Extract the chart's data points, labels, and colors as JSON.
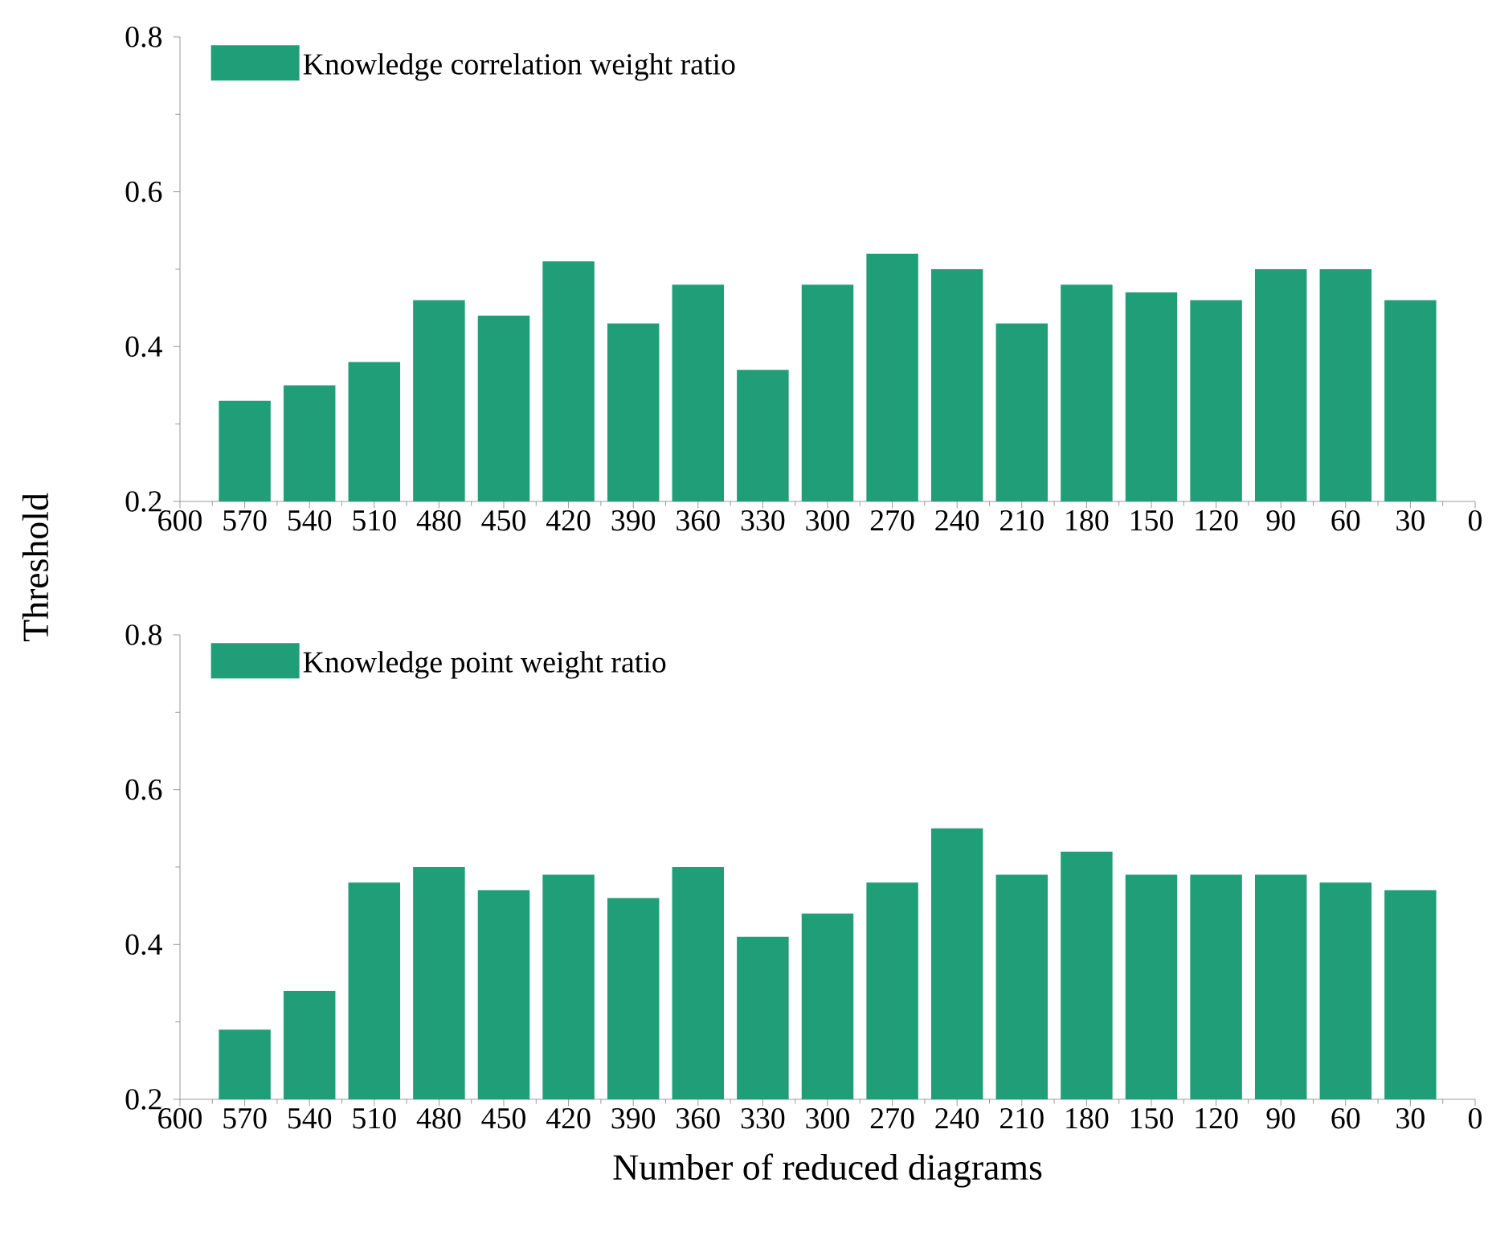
{
  "chart_data": [
    {
      "type": "bar",
      "ylabel": "Threshold",
      "x": [
        570,
        540,
        510,
        480,
        450,
        420,
        390,
        360,
        330,
        300,
        270,
        240,
        210,
        180,
        150,
        120,
        90,
        60,
        30
      ],
      "series": [
        {
          "name": "Knowledge correlation weight ratio",
          "color": "#1f9e78",
          "values": [
            0.33,
            0.35,
            0.38,
            0.46,
            0.44,
            0.51,
            0.43,
            0.48,
            0.37,
            0.48,
            0.52,
            0.5,
            0.43,
            0.48,
            0.47,
            0.46,
            0.5,
            0.5,
            0.46
          ]
        }
      ],
      "xlim": [
        600,
        0
      ],
      "xticks": [
        600,
        570,
        540,
        510,
        480,
        450,
        420,
        390,
        360,
        330,
        300,
        270,
        240,
        210,
        180,
        150,
        120,
        90,
        60,
        30,
        0
      ],
      "ylim": [
        0.2,
        0.8
      ],
      "yticks": [
        0.2,
        0.4,
        0.6,
        0.8
      ],
      "legend": "top left"
    },
    {
      "type": "bar",
      "xlabel": "Number of reduced diagrams",
      "x": [
        570,
        540,
        510,
        480,
        450,
        420,
        390,
        360,
        330,
        300,
        270,
        240,
        210,
        180,
        150,
        120,
        90,
        60,
        30
      ],
      "series": [
        {
          "name": "Knowledge point weight ratio",
          "color": "#1f9e78",
          "values": [
            0.29,
            0.34,
            0.48,
            0.5,
            0.47,
            0.49,
            0.46,
            0.5,
            0.41,
            0.44,
            0.48,
            0.55,
            0.49,
            0.52,
            0.49,
            0.49,
            0.49,
            0.48,
            0.47
          ]
        }
      ],
      "xlim": [
        600,
        0
      ],
      "xticks": [
        600,
        570,
        540,
        510,
        480,
        450,
        420,
        390,
        360,
        330,
        300,
        270,
        240,
        210,
        180,
        150,
        120,
        90,
        60,
        30,
        0
      ],
      "ylim": [
        0.2,
        0.8
      ],
      "yticks": [
        0.2,
        0.4,
        0.6,
        0.8
      ],
      "legend": "top left"
    }
  ]
}
